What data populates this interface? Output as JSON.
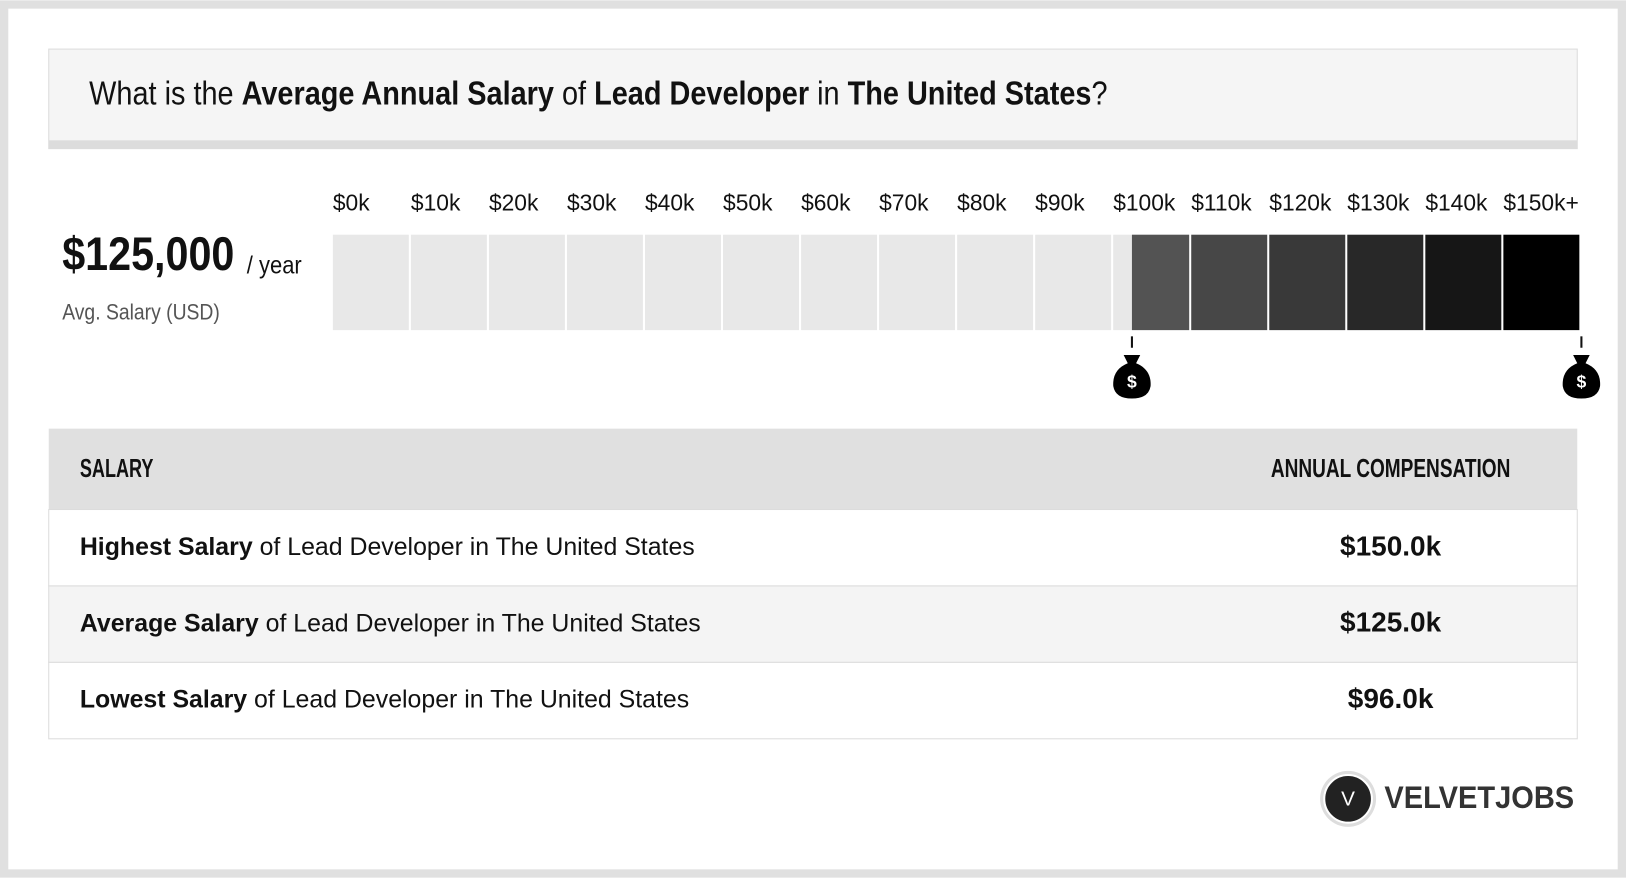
{
  "header": {
    "title": [
      {
        "text": "What is the ",
        "bold": false
      },
      {
        "text": "Average Annual Salary",
        "bold": true
      },
      {
        "text": " of ",
        "bold": false
      },
      {
        "text": "Lead Developer",
        "bold": true
      },
      {
        "text": " in ",
        "bold": false
      },
      {
        "text": "The United States",
        "bold": true
      },
      {
        "text": "?",
        "bold": false
      }
    ]
  },
  "summary": {
    "salary": "$125,000",
    "unit": "/ year",
    "caption": "Avg. Salary (USD)"
  },
  "scale": {
    "labels": [
      "$0k",
      "$10k",
      "$20k",
      "$30k",
      "$40k",
      "$50k",
      "$60k",
      "$70k",
      "$80k",
      "$90k",
      "$100k",
      "$110k",
      "$120k",
      "$130k",
      "$140k",
      "$150k+"
    ],
    "xlim": [
      0,
      150000
    ],
    "low": 96000,
    "high": 150000,
    "icon_symbol": "$"
  },
  "table": {
    "header": [
      "SALARY",
      "ANNUAL COMPENSATION"
    ],
    "rows": [
      {
        "bold": "Highest Salary",
        "rest": " of Lead Developer in The United States",
        "value": "$150.0k"
      },
      {
        "bold": "Average Salary",
        "rest": " of Lead Developer in The United States",
        "value": "$125.0k"
      },
      {
        "bold": "Lowest Salary",
        "rest": " of Lead Developer in The United States",
        "value": "$96.0k"
      }
    ]
  },
  "logo": {
    "initial": "V",
    "name": "VELVETJOBS"
  }
}
